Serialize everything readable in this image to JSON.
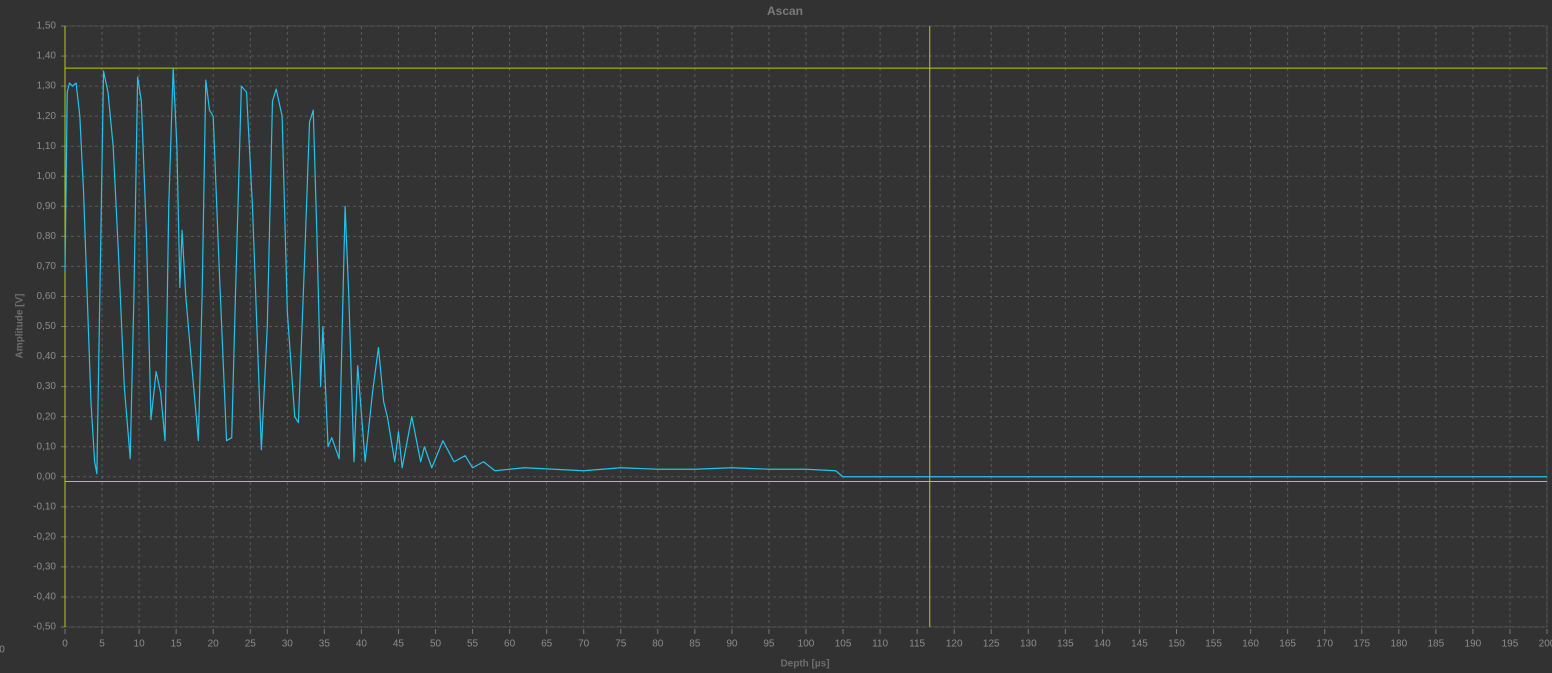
{
  "chart_data": {
    "type": "line",
    "title": "Ascan",
    "x_label": "Depth [µs]",
    "y_label": "Amplitude [V]",
    "corner_label": "0",
    "color": "#22c4ee",
    "x": [
      0,
      0.3,
      0.6,
      1,
      1.5,
      2,
      2.5,
      3,
      3.5,
      4,
      4.3,
      4.7,
      5.2,
      5.8,
      6.5,
      7.2,
      8,
      8.8,
      9.3,
      9.8,
      10.3,
      11,
      11.6,
      12.3,
      12.9,
      13.5,
      14,
      14.6,
      15.1,
      15.5,
      15.8,
      16.3,
      17,
      18,
      18.5,
      19,
      19.5,
      20,
      20.8,
      21.8,
      22.5,
      23,
      23.8,
      24.5,
      25.3,
      26.5,
      27.3,
      28,
      28.5,
      29.3,
      30,
      31,
      31.5,
      32.3,
      33,
      33.5,
      34,
      34.5,
      34.8,
      35.5,
      36,
      37,
      37.8,
      38.3,
      39,
      39.5,
      40.5,
      41.5,
      42.3,
      43,
      43.5,
      44.5,
      45,
      45.5,
      46.8,
      48,
      48.5,
      49.5,
      51,
      52.5,
      54,
      55,
      56.5,
      58,
      62,
      66,
      70,
      75,
      80,
      85,
      90,
      95,
      100,
      104,
      105,
      200
    ],
    "values": [
      0.68,
      1.28,
      1.31,
      1.3,
      1.31,
      1.2,
      0.95,
      0.6,
      0.25,
      0.05,
      0.01,
      0.6,
      1.35,
      1.28,
      1.1,
      0.75,
      0.3,
      0.06,
      0.6,
      1.33,
      1.25,
      0.8,
      0.19,
      0.35,
      0.28,
      0.12,
      0.9,
      1.36,
      1.1,
      0.63,
      0.82,
      0.6,
      0.4,
      0.12,
      0.6,
      1.32,
      1.22,
      1.2,
      0.7,
      0.12,
      0.13,
      0.6,
      1.3,
      1.28,
      0.9,
      0.09,
      0.5,
      1.25,
      1.29,
      1.2,
      0.55,
      0.2,
      0.18,
      0.7,
      1.18,
      1.22,
      0.8,
      0.3,
      0.5,
      0.1,
      0.13,
      0.06,
      0.9,
      0.6,
      0.05,
      0.37,
      0.05,
      0.28,
      0.43,
      0.25,
      0.2,
      0.05,
      0.15,
      0.03,
      0.2,
      0.05,
      0.1,
      0.03,
      0.12,
      0.05,
      0.07,
      0.03,
      0.05,
      0.02,
      0.03,
      0.025,
      0.02,
      0.03,
      0.025,
      0.025,
      0.03,
      0.025,
      0.025,
      0.02,
      0,
      0
    ],
    "xlim": [
      0,
      200
    ],
    "ylim": [
      -0.5,
      1.5
    ],
    "xticks": [
      0,
      5,
      10,
      15,
      20,
      25,
      30,
      35,
      40,
      45,
      50,
      55,
      60,
      65,
      70,
      75,
      80,
      85,
      90,
      95,
      100,
      105,
      110,
      115,
      120,
      125,
      130,
      135,
      140,
      145,
      150,
      155,
      160,
      165,
      170,
      175,
      180,
      185,
      190,
      195,
      200
    ],
    "yticks": [
      {
        "value": -0.5,
        "label": "-0,50"
      },
      {
        "value": -0.4,
        "label": "-0,40"
      },
      {
        "value": -0.3,
        "label": "-0,30"
      },
      {
        "value": -0.2,
        "label": "-0,20"
      },
      {
        "value": -0.1,
        "label": "-0,10"
      },
      {
        "value": 0,
        "label": "0,00"
      },
      {
        "value": 0.1,
        "label": "0,10"
      },
      {
        "value": 0.2,
        "label": "0,20"
      },
      {
        "value": 0.3,
        "label": "0,30"
      },
      {
        "value": 0.4,
        "label": "0,40"
      },
      {
        "value": 0.5,
        "label": "0,50"
      },
      {
        "value": 0.6,
        "label": "0,60"
      },
      {
        "value": 0.7,
        "label": "0,70"
      },
      {
        "value": 0.8,
        "label": "0,80"
      },
      {
        "value": 0.9,
        "label": "0,90"
      },
      {
        "value": 1,
        "label": "1,00"
      },
      {
        "value": 1.1,
        "label": "1,10"
      },
      {
        "value": 1.2,
        "label": "1,20"
      },
      {
        "value": 1.3,
        "label": "1,30"
      },
      {
        "value": 1.4,
        "label": "1,40"
      },
      {
        "value": 1.5,
        "label": "1,50"
      }
    ],
    "grid": true,
    "cursor_color": "#b8cc10",
    "cursors": [
      {
        "axis": "x",
        "value": 0
      },
      {
        "axis": "x",
        "value": 116.7
      },
      {
        "axis": "y",
        "value": 1.36
      },
      {
        "axis": "y",
        "value": -0.016
      }
    ]
  }
}
